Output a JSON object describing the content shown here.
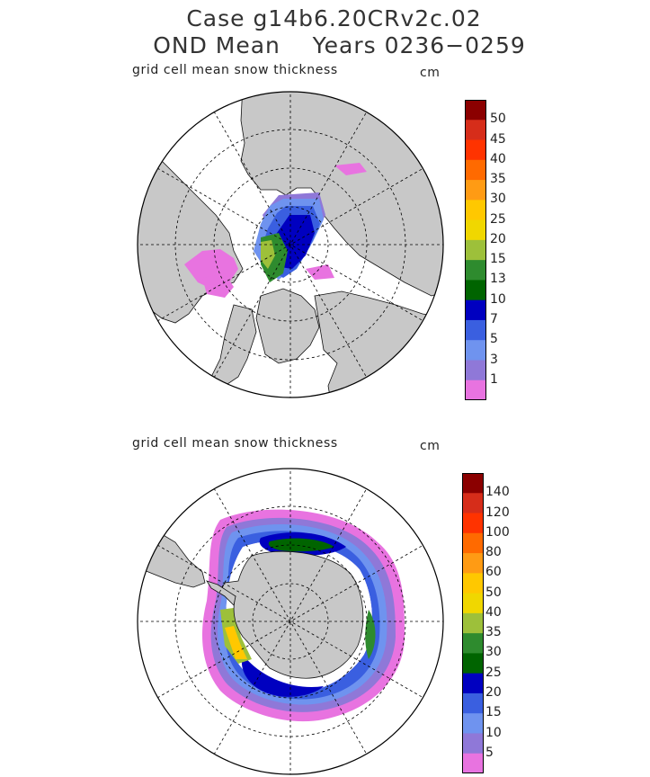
{
  "figure": {
    "title_line1": "Case g14b6.20CRv2c.02",
    "title_line2": "OND Mean    Years 0236−0259"
  },
  "colors": {
    "land": "#c8c8c8",
    "coast": "#111111",
    "grid": "#000000",
    "background": "#ffffff"
  },
  "panels": [
    {
      "id": "north",
      "hemisphere": "Northern Hemisphere (north polar stereographic)",
      "field_label": "grid cell mean snow thickness",
      "units": "cm",
      "colorbar": {
        "labels": [
          "50",
          "45",
          "40",
          "35",
          "30",
          "25",
          "20",
          "15",
          "13",
          "10",
          "7",
          "5",
          "3",
          "1"
        ],
        "colors": [
          "#8b0000",
          "#d62d1a",
          "#ff3300",
          "#ff6a00",
          "#ff9b14",
          "#ffc800",
          "#f0d700",
          "#9dc03a",
          "#2e8b2e",
          "#006400",
          "#0000c0",
          "#3a5fe0",
          "#6f93ef",
          "#8f78d8",
          "#e873e0"
        ]
      }
    },
    {
      "id": "south",
      "hemisphere": "Southern Hemisphere (south polar stereographic)",
      "field_label": "grid cell mean snow thickness",
      "units": "cm",
      "colorbar": {
        "labels": [
          "140",
          "120",
          "100",
          "80",
          "60",
          "50",
          "40",
          "35",
          "30",
          "25",
          "20",
          "15",
          "10",
          "5"
        ],
        "colors": [
          "#8b0000",
          "#d62d1a",
          "#ff3300",
          "#ff6a00",
          "#ff9b14",
          "#ffc800",
          "#f0d700",
          "#9dc03a",
          "#2e8b2e",
          "#006400",
          "#0000c0",
          "#3a5fe0",
          "#6f93ef",
          "#8f78d8",
          "#e873e0"
        ]
      }
    }
  ]
}
